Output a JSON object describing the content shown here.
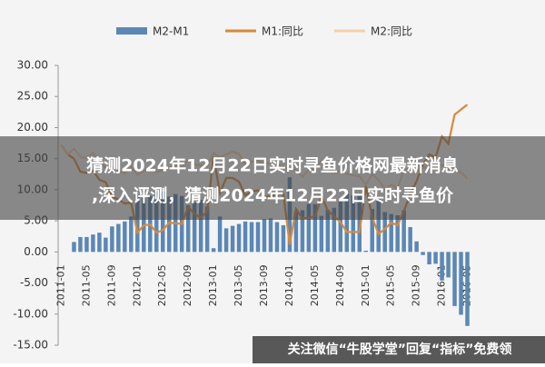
{
  "chart_data": {
    "type": "bar-line",
    "title": [
      "猜测2024年12月22日实时寻鱼价格网最新消息",
      ",深入评测，猜测2024年12月22日实时寻鱼价"
    ],
    "annotation": "关注微信“牛股学堂”回复“指标”免费领",
    "categories": [
      "2011-01",
      null,
      null,
      null,
      "2011-05",
      null,
      null,
      null,
      "2011-09",
      null,
      null,
      null,
      "2012-01",
      null,
      null,
      null,
      "2012-05",
      null,
      null,
      null,
      "2012-09",
      null,
      null,
      null,
      "2013-01",
      null,
      null,
      null,
      "2013-05",
      null,
      null,
      null,
      "2013-09",
      null,
      null,
      null,
      "2014-01",
      null,
      null,
      null,
      "2014-05",
      null,
      null,
      null,
      "2014-09",
      null,
      null,
      null,
      "2015-01",
      null,
      null,
      null,
      "2015-05",
      null,
      null,
      null,
      "2015-09",
      null,
      null,
      null,
      "2016-01",
      null,
      null,
      null,
      "2016-05"
    ],
    "series": [
      {
        "name": "M2-M1",
        "kind": "bar",
        "color": "#5b87b5",
        "values": [
          0,
          0,
          1.6,
          2.4,
          2.4,
          2.8,
          3.1,
          2.3,
          4.1,
          4.5,
          4.9,
          5.7,
          9.3,
          8.7,
          9.0,
          9.7,
          9.7,
          8.9,
          9.3,
          9.0,
          7.5,
          8.0,
          8.4,
          7.3,
          0.6,
          5.7,
          3.8,
          4.2,
          4.5,
          4.9,
          4.8,
          4.8,
          5.3,
          5.4,
          4.8,
          4.3,
          12.0,
          6.4,
          6.7,
          7.7,
          7.7,
          5.8,
          6.8,
          7.1,
          8.1,
          9.4,
          9.1,
          9.0,
          0.2,
          6.9,
          8.7,
          6.4,
          6.1,
          5.9,
          6.7,
          4.0,
          1.7,
          -0.5,
          -2.0,
          -1.9,
          -4.6,
          -4.1,
          -8.7,
          -10.1,
          -11.9
        ]
      },
      {
        "name": "M1:同比",
        "kind": "line",
        "color": "#d9893a",
        "values": [
          17.2,
          15.7,
          15.0,
          12.9,
          12.7,
          13.1,
          11.6,
          11.2,
          8.9,
          8.4,
          7.8,
          7.9,
          3.1,
          4.3,
          4.4,
          3.1,
          3.5,
          4.7,
          4.6,
          4.5,
          7.3,
          6.1,
          5.5,
          6.5,
          15.3,
          9.5,
          11.9,
          11.9,
          11.3,
          9.1,
          9.7,
          9.9,
          8.9,
          8.9,
          9.4,
          9.3,
          1.2,
          6.9,
          5.4,
          5.5,
          5.7,
          8.9,
          6.7,
          5.7,
          4.8,
          3.2,
          3.2,
          3.2,
          10.6,
          5.6,
          2.9,
          3.7,
          4.7,
          4.3,
          6.6,
          9.3,
          11.4,
          14.0,
          15.7,
          15.2,
          18.6,
          17.4,
          22.1,
          22.9,
          23.7
        ]
      },
      {
        "name": "M2:同比",
        "kind": "line",
        "color": "#f3cfae",
        "values": [
          17.2,
          15.7,
          16.6,
          15.3,
          15.1,
          15.9,
          14.7,
          13.5,
          13.0,
          12.9,
          12.7,
          13.6,
          12.4,
          13.0,
          13.4,
          12.8,
          13.2,
          13.6,
          13.9,
          13.5,
          14.8,
          14.1,
          13.9,
          13.8,
          15.9,
          15.2,
          15.7,
          16.1,
          15.8,
          14.0,
          14.5,
          14.7,
          14.2,
          14.3,
          14.2,
          13.6,
          13.2,
          13.3,
          12.1,
          13.2,
          13.4,
          14.7,
          13.5,
          12.8,
          12.9,
          12.6,
          12.3,
          12.2,
          10.8,
          12.5,
          11.6,
          10.1,
          10.8,
          10.2,
          13.3,
          13.3,
          13.1,
          13.5,
          13.7,
          13.3,
          14.0,
          13.3,
          13.4,
          12.8,
          11.8
        ]
      }
    ],
    "ylim": [
      -15,
      30
    ],
    "yticks": [
      {
        "value": -15,
        "label": "-15.00"
      },
      {
        "value": -10,
        "label": "-10.00"
      },
      {
        "value": -5,
        "label": "-5.00"
      },
      {
        "value": 0,
        "label": "0.00"
      },
      {
        "value": 5,
        "label": "5.00"
      },
      {
        "value": 10,
        "label": "10.00"
      },
      {
        "value": 15,
        "label": "15.00"
      },
      {
        "value": 20,
        "label": "20.00"
      },
      {
        "value": 25,
        "label": "25.00"
      },
      {
        "value": 30,
        "label": "30.00"
      }
    ],
    "grid": false
  }
}
